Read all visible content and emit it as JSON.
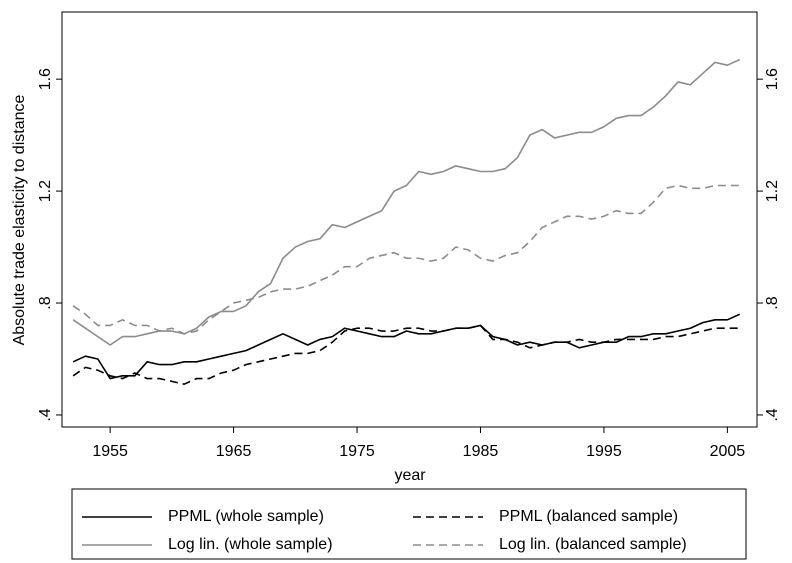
{
  "chart_data": {
    "type": "line",
    "x_label": "year",
    "y_label": "Absolute trade elasticity to distance",
    "x": [
      1952,
      1953,
      1954,
      1955,
      1956,
      1957,
      1958,
      1959,
      1960,
      1961,
      1962,
      1963,
      1964,
      1965,
      1966,
      1967,
      1968,
      1969,
      1970,
      1971,
      1972,
      1973,
      1974,
      1975,
      1976,
      1977,
      1978,
      1979,
      1980,
      1981,
      1982,
      1983,
      1984,
      1985,
      1986,
      1987,
      1988,
      1989,
      1990,
      1991,
      1992,
      1993,
      1994,
      1995,
      1996,
      1997,
      1998,
      1999,
      2000,
      2001,
      2002,
      2003,
      2004,
      2005,
      2006
    ],
    "series": [
      {
        "name": "PPML (whole sample)",
        "color": "#000000",
        "style": "solid",
        "values": [
          0.59,
          0.61,
          0.6,
          0.53,
          0.54,
          0.54,
          0.59,
          0.58,
          0.58,
          0.59,
          0.59,
          0.6,
          0.61,
          0.62,
          0.63,
          0.65,
          0.67,
          0.69,
          0.67,
          0.65,
          0.67,
          0.68,
          0.71,
          0.7,
          0.69,
          0.68,
          0.68,
          0.7,
          0.69,
          0.69,
          0.7,
          0.71,
          0.71,
          0.72,
          0.68,
          0.67,
          0.65,
          0.66,
          0.65,
          0.66,
          0.66,
          0.64,
          0.65,
          0.66,
          0.66,
          0.68,
          0.68,
          0.69,
          0.69,
          0.7,
          0.71,
          0.73,
          0.74,
          0.74,
          0.76
        ]
      },
      {
        "name": "PPML (balanced sample)",
        "color": "#000000",
        "style": "dashed",
        "values": [
          0.54,
          0.57,
          0.56,
          0.54,
          0.53,
          0.55,
          0.53,
          0.53,
          0.52,
          0.51,
          0.53,
          0.53,
          0.55,
          0.56,
          0.58,
          0.59,
          0.6,
          0.61,
          0.62,
          0.62,
          0.63,
          0.66,
          0.7,
          0.71,
          0.71,
          0.7,
          0.7,
          0.71,
          0.71,
          0.7,
          0.7,
          0.71,
          0.71,
          0.72,
          0.67,
          0.67,
          0.66,
          0.64,
          0.65,
          0.66,
          0.66,
          0.67,
          0.66,
          0.66,
          0.67,
          0.67,
          0.67,
          0.67,
          0.68,
          0.68,
          0.69,
          0.7,
          0.71,
          0.71,
          0.71
        ]
      },
      {
        "name": "Log lin. (whole sample)",
        "color": "#8c8c8c",
        "style": "solid",
        "values": [
          0.74,
          0.71,
          0.68,
          0.65,
          0.68,
          0.68,
          0.69,
          0.7,
          0.7,
          0.69,
          0.71,
          0.75,
          0.77,
          0.77,
          0.79,
          0.84,
          0.87,
          0.96,
          1.0,
          1.02,
          1.03,
          1.08,
          1.07,
          1.09,
          1.11,
          1.13,
          1.2,
          1.22,
          1.27,
          1.26,
          1.27,
          1.29,
          1.28,
          1.27,
          1.27,
          1.28,
          1.32,
          1.4,
          1.42,
          1.39,
          1.4,
          1.41,
          1.41,
          1.43,
          1.46,
          1.47,
          1.47,
          1.5,
          1.54,
          1.59,
          1.58,
          1.62,
          1.66,
          1.65,
          1.67
        ]
      },
      {
        "name": "Log lin. (balanced sample)",
        "color": "#8c8c8c",
        "style": "dashed",
        "values": [
          0.79,
          0.76,
          0.72,
          0.72,
          0.74,
          0.72,
          0.72,
          0.7,
          0.71,
          0.69,
          0.7,
          0.74,
          0.77,
          0.8,
          0.81,
          0.82,
          0.84,
          0.85,
          0.85,
          0.86,
          0.88,
          0.9,
          0.93,
          0.93,
          0.96,
          0.97,
          0.98,
          0.96,
          0.96,
          0.95,
          0.96,
          1.0,
          0.99,
          0.96,
          0.95,
          0.97,
          0.98,
          1.02,
          1.07,
          1.09,
          1.11,
          1.11,
          1.1,
          1.11,
          1.13,
          1.12,
          1.12,
          1.16,
          1.21,
          1.22,
          1.21,
          1.21,
          1.22,
          1.22,
          1.22
        ]
      }
    ],
    "xlim": [
      1951.1,
      2007.4
    ],
    "xticks": [
      1955,
      1965,
      1975,
      1985,
      1995,
      2005
    ],
    "ylim": [
      0.357,
      1.84
    ],
    "yticks": [
      {
        "value": 0.4,
        "label": ".4"
      },
      {
        "value": 0.8,
        "label": ".8"
      },
      1.2,
      1.6
    ],
    "y2lim": [
      0.357,
      1.84
    ],
    "y2ticks": [
      {
        "value": 0.4,
        "label": ".4"
      },
      {
        "value": 0.8,
        "label": ".8"
      },
      1.2,
      1.6
    ],
    "grid": false,
    "legend": "bottom"
  }
}
